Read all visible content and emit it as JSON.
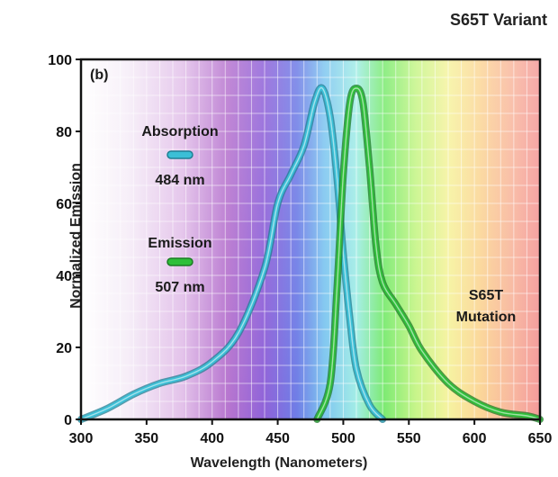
{
  "chart_data": {
    "type": "line",
    "title": "S65T Variant",
    "panel_label": "(b)",
    "xlabel": "Wavelength (Nanometers)",
    "ylabel": "Normalized Emission",
    "xlim": [
      300,
      650
    ],
    "ylim": [
      0,
      100
    ],
    "xticks": [
      300,
      350,
      400,
      450,
      500,
      550,
      600,
      650
    ],
    "yticks": [
      0,
      20,
      40,
      60,
      80,
      100
    ],
    "grid": true,
    "background": "visible light spectrum gradient",
    "series": [
      {
        "name": "Absorption",
        "peak_label": "484 nm",
        "color": "#3bbfd6",
        "x": [
          300,
          320,
          340,
          360,
          380,
          400,
          420,
          440,
          450,
          460,
          470,
          478,
          484,
          490,
          495,
          500,
          505,
          510,
          520,
          530
        ],
        "y": [
          0,
          3,
          7,
          10,
          12,
          16,
          24,
          42,
          60,
          68,
          76,
          88,
          92,
          84,
          68,
          46,
          28,
          14,
          4,
          0
        ]
      },
      {
        "name": "Emission",
        "peak_label": "507 nm",
        "color": "#2fbf3a",
        "x": [
          480,
          490,
          495,
          500,
          505,
          510,
          515,
          520,
          525,
          530,
          540,
          550,
          560,
          580,
          600,
          620,
          640,
          650
        ],
        "y": [
          0,
          10,
          35,
          68,
          88,
          92,
          88,
          70,
          48,
          38,
          32,
          26,
          19,
          10,
          5,
          2,
          1,
          0
        ]
      }
    ],
    "annotations": [
      "S65T",
      "Mutation"
    ]
  }
}
